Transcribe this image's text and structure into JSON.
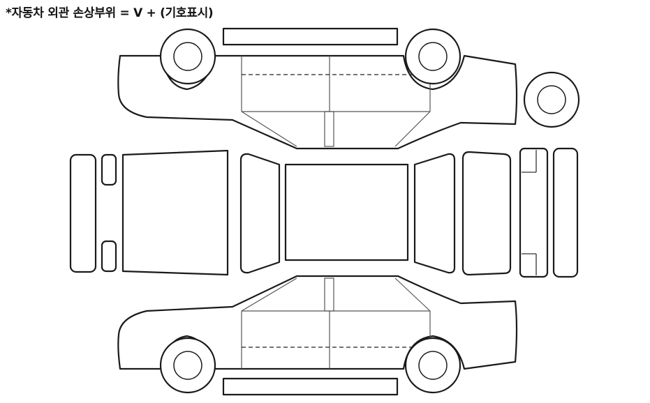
{
  "title": "*자동차 외관 손상부위 = V + (기호표시)"
}
